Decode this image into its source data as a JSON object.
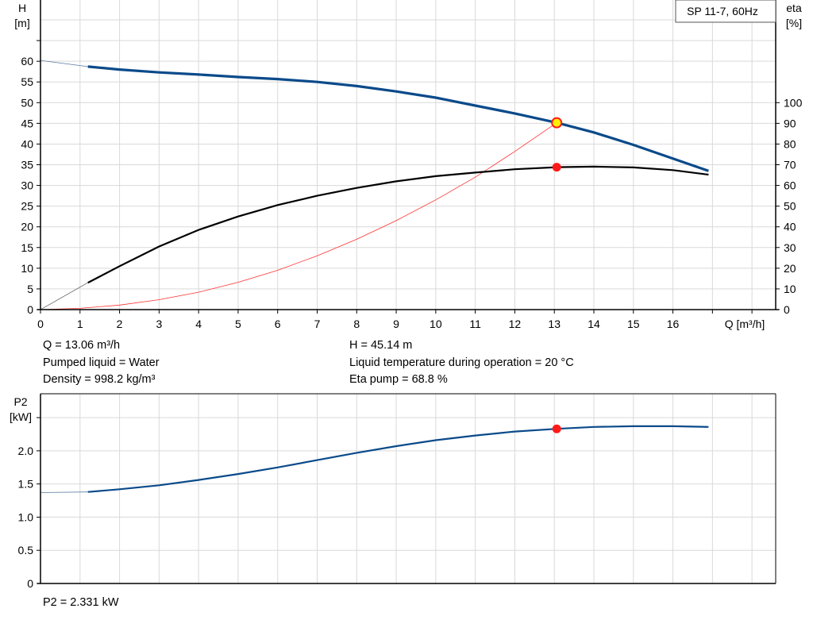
{
  "chart_data": [
    {
      "type": "line",
      "legend_box": "SP 11-7, 60Hz",
      "xlabel": "Q [m³/h]",
      "ylabel_left": [
        "H",
        "[m]"
      ],
      "ylabel_right": [
        "eta",
        "[%]"
      ],
      "xlim": [
        0,
        18.6
      ],
      "ylim_left": [
        0,
        74.8
      ],
      "ylim_right": [
        0,
        149.6
      ],
      "grid": true,
      "x_ticks": [
        0,
        1,
        2,
        3,
        4,
        5,
        6,
        7,
        8,
        9,
        10,
        11,
        12,
        13,
        14,
        15,
        16
      ],
      "y_ticks_left": [
        0,
        5,
        10,
        15,
        20,
        25,
        30,
        35,
        40,
        45,
        50,
        55,
        60
      ],
      "y_ticks_right": [
        0,
        10,
        20,
        30,
        40,
        50,
        60,
        70,
        80,
        90,
        100
      ],
      "series": [
        {
          "role": "head",
          "axis": "left",
          "color": "#0a4a8a",
          "x": [
            0,
            1.2,
            2,
            3,
            4,
            5,
            6,
            7,
            8,
            9,
            10,
            11,
            12,
            13.06,
            14,
            15,
            16,
            16.9
          ],
          "y": [
            60.2,
            58.7,
            58.0,
            57.3,
            56.8,
            56.2,
            55.7,
            55.0,
            54.0,
            52.7,
            51.2,
            49.3,
            47.4,
            45.14,
            42.8,
            39.8,
            36.5,
            33.5
          ]
        },
        {
          "role": "efficiency",
          "axis": "right",
          "color": "#000000",
          "x": [
            0,
            1.2,
            2,
            3,
            4,
            5,
            6,
            7,
            8,
            9,
            10,
            11,
            12,
            13.06,
            14,
            15,
            16,
            16.9
          ],
          "y": [
            0,
            13,
            21,
            30.5,
            38.5,
            45,
            50.5,
            55,
            58.8,
            62,
            64.5,
            66.2,
            67.8,
            68.8,
            69.1,
            68.7,
            67.4,
            65.2
          ]
        },
        {
          "role": "system-curve",
          "axis": "left",
          "color": "#ff3030",
          "x": [
            0,
            1,
            2,
            3,
            4,
            5,
            6,
            7,
            8,
            9,
            10,
            11,
            12,
            13.06
          ],
          "y": [
            0,
            0.3,
            1.1,
            2.4,
            4.2,
            6.6,
            9.5,
            13,
            17,
            21.5,
            26.5,
            32,
            38.2,
            45.14
          ]
        }
      ],
      "operating_point": {
        "q": 13.06,
        "h": 45.14,
        "eta": 68.8
      }
    },
    {
      "type": "line",
      "xlabel": "",
      "ylabel_left": [
        "P2",
        "[kW]"
      ],
      "xlim": [
        0,
        18.6
      ],
      "ylim": [
        0,
        2.86
      ],
      "grid": true,
      "y_ticks": [
        "0",
        "0.5",
        "1.0",
        "1.5",
        "2.0"
      ],
      "series": [
        {
          "role": "power",
          "color": "#0a4a8a",
          "x": [
            0,
            1.2,
            2,
            3,
            4,
            5,
            6,
            7,
            8,
            9,
            10,
            11,
            12,
            13.06,
            14,
            15,
            16,
            16.9
          ],
          "y": [
            1.37,
            1.38,
            1.42,
            1.48,
            1.56,
            1.65,
            1.75,
            1.86,
            1.97,
            2.07,
            2.16,
            2.23,
            2.29,
            2.331,
            2.36,
            2.37,
            2.37,
            2.36
          ]
        }
      ],
      "operating_point": {
        "q": 13.06,
        "p2": 2.331
      }
    }
  ],
  "info": {
    "q": "Q = 13.06 m³/h",
    "liquid": "Pumped liquid = Water",
    "density": "Density = 998.2 kg/m³",
    "h": "H = 45.14 m",
    "temp": "Liquid temperature during operation = 20 °C",
    "eta": "Eta pump = 68.8 %",
    "p2": "P2 = 2.331 kW"
  },
  "colors": {
    "grid": "#d9d9d9",
    "head": "#0a4a8a",
    "efficiency": "#000000",
    "system": "#ff3030",
    "point": "#ff1a1a",
    "point_fill_op": "#ffee00"
  }
}
